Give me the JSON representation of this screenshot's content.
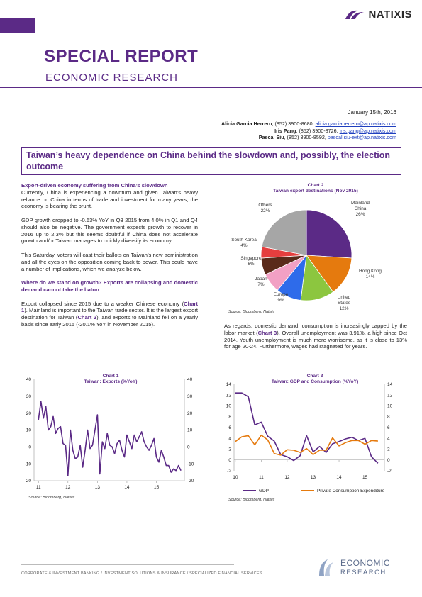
{
  "brand": {
    "name": "NATIXIS"
  },
  "report": {
    "title": "SPECIAL REPORT",
    "subtitle": "ECONOMIC RESEARCH"
  },
  "date": "January 15th, 2016",
  "authors": [
    {
      "name": "Alicia Garcia Herrero",
      "phone": ", (852) 3900-8680, ",
      "email": "alicia.garciaherrero@ap.natixis.com"
    },
    {
      "name": "Iris Pang",
      "phone": ", (852) 3900-8726, ",
      "email": "iris.pang@ap.natixis.com"
    },
    {
      "name": "Pascal Siu",
      "phone": ", (852) 3900-8592, ",
      "email": "pascal.siu-ext@ap.natixis.com"
    }
  ],
  "headline": "Taiwan’s heavy dependence on China behind the slowdown and, possibly, the election outcome",
  "left": {
    "s1_head": "Export-driven economy suffering from China’s slowdown",
    "s1_p1": "Currently, China is experiencing a downturn and given Taiwan’s heavy reliance on China in terms of trade and investment for many years, the economy is bearing the brunt.",
    "p2": "GDP growth dropped to -0.63% YoY in Q3 2015 from 4.0% in Q1 and Q4 should also be negative. The government expects growth to recover in 2016 up to 2.3% but this seems doubtful if China does not accelerate growth and/or Taiwan manages to quickly diversify its economy.",
    "p3": "This Saturday, voters will cast their ballots on Taiwan’s new administration and all the eyes on the opposition coming back to power. This could have a number of implications, which we analyze below.",
    "s2_head": "Where do we stand on growth? Exports are collapsing and domestic demand cannot take the baton",
    "p4_a": "Export collapsed since 2015 due to a weaker Chinese economy (",
    "p4_ref1": "Chart 1",
    "p4_b": "). Mainland is important to the Taiwan trade sector. It is the largest export destination for Taiwan (",
    "p4_ref2": "Chart 2",
    "p4_c": "), and exports to Mainland fell on a yearly basis since early 2015 (-20.1% YoY in November 2015)."
  },
  "right": {
    "p1_a": "As regards, domestic demand, consumption is increasingly capped by the labor market (",
    "p1_ref": "Chart 3",
    "p1_b": "). Overall unemployment was 3.91%, a high since Oct 2014. Youth unemployment is much more worrisome, as it is close to 13% for age 20-24. Furthermore, wages had stagnated for years."
  },
  "chart_data": [
    {
      "id": "chart1",
      "type": "line",
      "title": "Chart 1",
      "subtitle": "Taiwan: Exports (%YoY)",
      "x": [
        2011.0,
        2011.083,
        2011.167,
        2011.25,
        2011.333,
        2011.417,
        2011.5,
        2011.583,
        2011.667,
        2011.75,
        2011.833,
        2011.917,
        2012.0,
        2012.083,
        2012.167,
        2012.25,
        2012.333,
        2012.417,
        2012.5,
        2012.583,
        2012.667,
        2012.75,
        2012.833,
        2012.917,
        2013.0,
        2013.083,
        2013.167,
        2013.25,
        2013.333,
        2013.417,
        2013.5,
        2013.583,
        2013.667,
        2013.75,
        2013.833,
        2013.917,
        2014.0,
        2014.083,
        2014.167,
        2014.25,
        2014.333,
        2014.417,
        2014.5,
        2014.583,
        2014.667,
        2014.75,
        2014.833,
        2014.917,
        2015.0,
        2015.083,
        2015.167,
        2015.25,
        2015.333,
        2015.417,
        2015.5,
        2015.583,
        2015.667,
        2015.75,
        2015.833
      ],
      "values": [
        16,
        27,
        17,
        24,
        10,
        12,
        18,
        8,
        11,
        12,
        2,
        1,
        -17,
        10,
        -2,
        -7,
        -6,
        1,
        -12,
        -2,
        10,
        -1,
        1,
        10,
        19,
        -16,
        3,
        -1,
        8,
        1,
        0,
        -4,
        2,
        4,
        -2,
        -6,
        7,
        3,
        -1,
        7,
        3,
        6,
        9,
        3,
        0,
        -2,
        1,
        5,
        -6,
        -9,
        -2,
        -6,
        -11,
        -11,
        -15,
        -13,
        -14,
        -11,
        -14
      ],
      "xticks": [
        "11",
        "12",
        "13",
        "14",
        "15"
      ],
      "ylim": [
        -20,
        40
      ],
      "yticks": [
        -20,
        -10,
        0,
        10,
        20,
        30,
        40
      ],
      "color": "#5b2a86"
    },
    {
      "id": "chart2",
      "type": "pie",
      "title": "Chart 2",
      "subtitle": "Taiwan export destinations (Nov 2015)",
      "slices": [
        {
          "label": "Mainland\nChina",
          "value": 26,
          "color": "#5b2a86"
        },
        {
          "label": "Hong Kong",
          "value": 14,
          "color": "#e57a0e"
        },
        {
          "label": "United\nStates",
          "value": 12,
          "color": "#8cc63f"
        },
        {
          "label": "Europe",
          "value": 9,
          "color": "#2e6bea"
        },
        {
          "label": "Japan",
          "value": 7,
          "color": "#f2a0c4"
        },
        {
          "label": "Singapore",
          "value": 6,
          "color": "#5a2a1a"
        },
        {
          "label": "South Korea",
          "value": 4,
          "color": "#e53e3e"
        },
        {
          "label": "Others",
          "value": 22,
          "color": "#a6a6a6"
        }
      ]
    },
    {
      "id": "chart3",
      "type": "line",
      "title": "Chart 3",
      "subtitle": "Taiwan: GDP and Consumption (%YoY)",
      "x": [
        2010.0,
        2010.25,
        2010.5,
        2010.75,
        2011.0,
        2011.25,
        2011.5,
        2011.75,
        2012.0,
        2012.25,
        2012.5,
        2012.75,
        2013.0,
        2013.25,
        2013.5,
        2013.75,
        2014.0,
        2014.25,
        2014.5,
        2014.75,
        2015.0,
        2015.25,
        2015.5
      ],
      "series": [
        {
          "name": "GDP",
          "color": "#5b2a86",
          "values": [
            12.4,
            12.4,
            11.7,
            6.5,
            7.0,
            4.4,
            3.5,
            1.0,
            0.6,
            -0.1,
            0.8,
            4.5,
            1.5,
            2.5,
            1.4,
            3.0,
            3.4,
            3.9,
            4.2,
            3.6,
            4.0,
            0.6,
            -0.6
          ]
        },
        {
          "name": "Private Consumption Expenditure",
          "color": "#e57a0e",
          "values": [
            3.4,
            4.3,
            4.5,
            2.8,
            4.6,
            3.7,
            1.2,
            0.9,
            1.9,
            1.8,
            1.4,
            2.1,
            1.0,
            1.8,
            1.8,
            4.1,
            2.6,
            3.2,
            3.6,
            3.6,
            2.9,
            3.6,
            3.5
          ]
        }
      ],
      "xticks": [
        "10",
        "11",
        "12",
        "13",
        "14",
        "15"
      ],
      "ylim": [
        -2,
        14
      ],
      "yticks": [
        -2,
        0,
        2,
        4,
        6,
        8,
        10,
        12,
        14
      ]
    }
  ],
  "sources": {
    "chart1": "Source: Bloomberg, Natixis",
    "chart2": "Source: Bloomberg, Natixis",
    "chart3": "Source: Bloomberg, Natixis"
  },
  "footer": {
    "text": "CORPORATE & INVESTMENT BANKING / INVESTMENT SOLUTIONS & INSURANCE / SPECIALIZED FINANCIAL SERVICES",
    "logo_line1": "ECONOMIC",
    "logo_line2": "RESEARCH"
  }
}
